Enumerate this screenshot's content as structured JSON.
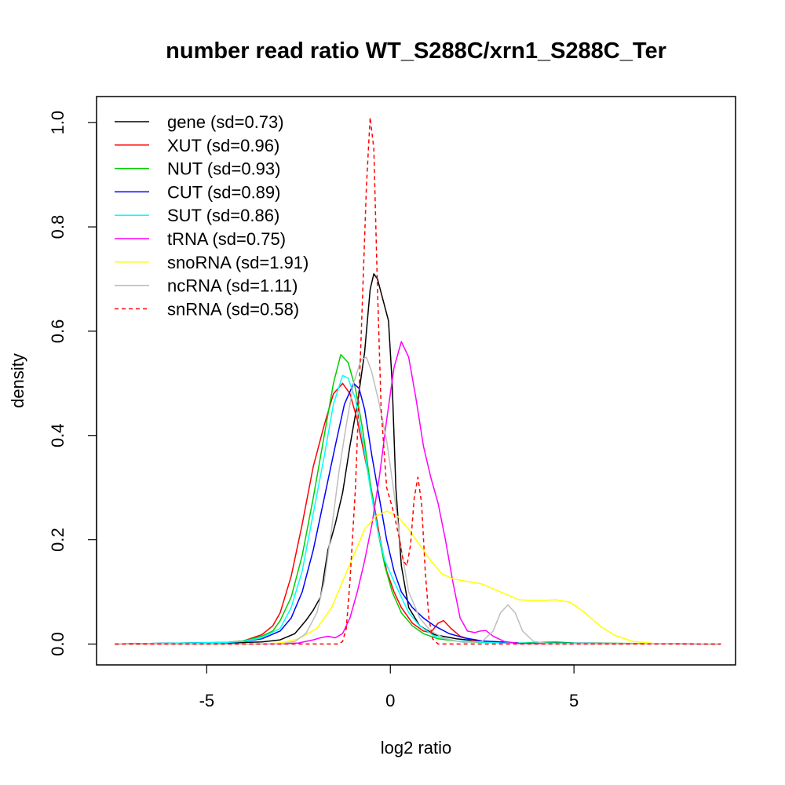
{
  "chart_data": {
    "type": "line",
    "title": "number read ratio WT_S288C/xrn1_S288C_Ter",
    "xlabel": "log2 ratio",
    "ylabel": "density",
    "xlim": [
      -8.0,
      9.4
    ],
    "ylim": [
      -0.04,
      1.05
    ],
    "x_ticks": [
      -5,
      0,
      5
    ],
    "x_tick_labels": [
      "-5",
      "0",
      "5"
    ],
    "y_ticks": [
      0.0,
      0.2,
      0.4,
      0.6,
      0.8,
      1.0
    ],
    "y_tick_labels": [
      "0.0",
      "0.2",
      "0.4",
      "0.6",
      "0.8",
      "1.0"
    ],
    "legend_position": "top-left",
    "grid": false,
    "series": [
      {
        "name": "gene (sd=0.73)",
        "color": "#000000",
        "dash": "solid",
        "points": [
          [
            -7.5,
            0
          ],
          [
            -4.5,
            0.002
          ],
          [
            -3.5,
            0.004
          ],
          [
            -3.0,
            0.008
          ],
          [
            -2.6,
            0.02
          ],
          [
            -2.3,
            0.045
          ],
          [
            -2.1,
            0.065
          ],
          [
            -1.9,
            0.09
          ],
          [
            -1.7,
            0.18
          ],
          [
            -1.5,
            0.23
          ],
          [
            -1.3,
            0.29
          ],
          [
            -1.1,
            0.38
          ],
          [
            -0.9,
            0.46
          ],
          [
            -0.7,
            0.56
          ],
          [
            -0.55,
            0.68
          ],
          [
            -0.45,
            0.71
          ],
          [
            -0.35,
            0.7
          ],
          [
            -0.2,
            0.66
          ],
          [
            -0.05,
            0.62
          ],
          [
            0.05,
            0.5
          ],
          [
            0.15,
            0.3
          ],
          [
            0.3,
            0.15
          ],
          [
            0.5,
            0.07
          ],
          [
            0.8,
            0.035
          ],
          [
            1.2,
            0.018
          ],
          [
            1.8,
            0.01
          ],
          [
            2.5,
            0.005
          ],
          [
            3.5,
            0.002
          ],
          [
            5,
            0.001
          ],
          [
            9,
            0
          ]
        ]
      },
      {
        "name": "XUT (sd=0.96)",
        "color": "#ff0000",
        "dash": "solid",
        "points": [
          [
            -7.5,
            0
          ],
          [
            -4.5,
            0.003
          ],
          [
            -4.0,
            0.006
          ],
          [
            -3.5,
            0.018
          ],
          [
            -3.2,
            0.035
          ],
          [
            -3.0,
            0.06
          ],
          [
            -2.7,
            0.13
          ],
          [
            -2.4,
            0.23
          ],
          [
            -2.1,
            0.34
          ],
          [
            -1.8,
            0.42
          ],
          [
            -1.55,
            0.48
          ],
          [
            -1.3,
            0.5
          ],
          [
            -1.1,
            0.48
          ],
          [
            -0.9,
            0.43
          ],
          [
            -0.7,
            0.36
          ],
          [
            -0.5,
            0.29
          ],
          [
            -0.3,
            0.21
          ],
          [
            -0.1,
            0.14
          ],
          [
            0.1,
            0.1
          ],
          [
            0.3,
            0.07
          ],
          [
            0.6,
            0.04
          ],
          [
            0.9,
            0.025
          ],
          [
            1.1,
            0.022
          ],
          [
            1.3,
            0.04
          ],
          [
            1.45,
            0.045
          ],
          [
            1.65,
            0.03
          ],
          [
            1.9,
            0.015
          ],
          [
            2.3,
            0.006
          ],
          [
            3.5,
            0.002
          ],
          [
            9,
            0
          ]
        ]
      },
      {
        "name": "NUT (sd=0.93)",
        "color": "#00cd00",
        "dash": "solid",
        "points": [
          [
            -7.5,
            0
          ],
          [
            -4.5,
            0.003
          ],
          [
            -4.0,
            0.006
          ],
          [
            -3.5,
            0.015
          ],
          [
            -3.2,
            0.025
          ],
          [
            -3.0,
            0.045
          ],
          [
            -2.7,
            0.09
          ],
          [
            -2.4,
            0.17
          ],
          [
            -2.1,
            0.28
          ],
          [
            -1.8,
            0.4
          ],
          [
            -1.55,
            0.5
          ],
          [
            -1.35,
            0.555
          ],
          [
            -1.15,
            0.54
          ],
          [
            -0.95,
            0.49
          ],
          [
            -0.75,
            0.41
          ],
          [
            -0.55,
            0.31
          ],
          [
            -0.35,
            0.22
          ],
          [
            -0.15,
            0.15
          ],
          [
            0.05,
            0.1
          ],
          [
            0.3,
            0.06
          ],
          [
            0.6,
            0.035
          ],
          [
            0.9,
            0.02
          ],
          [
            1.3,
            0.01
          ],
          [
            2.0,
            0.004
          ],
          [
            3.5,
            0.002
          ],
          [
            4.5,
            0.004
          ],
          [
            5.0,
            0.002
          ],
          [
            9,
            0
          ]
        ]
      },
      {
        "name": "CUT (sd=0.89)",
        "color": "#0000ff",
        "dash": "solid",
        "points": [
          [
            -7.5,
            0
          ],
          [
            -4.5,
            0.003
          ],
          [
            -4.0,
            0.005
          ],
          [
            -3.5,
            0.01
          ],
          [
            -3.0,
            0.025
          ],
          [
            -2.7,
            0.05
          ],
          [
            -2.4,
            0.1
          ],
          [
            -2.1,
            0.18
          ],
          [
            -1.8,
            0.28
          ],
          [
            -1.5,
            0.38
          ],
          [
            -1.25,
            0.46
          ],
          [
            -1.0,
            0.5
          ],
          [
            -0.85,
            0.49
          ],
          [
            -0.7,
            0.45
          ],
          [
            -0.5,
            0.36
          ],
          [
            -0.3,
            0.28
          ],
          [
            -0.1,
            0.2
          ],
          [
            0.1,
            0.14
          ],
          [
            0.3,
            0.1
          ],
          [
            0.6,
            0.07
          ],
          [
            0.9,
            0.05
          ],
          [
            1.2,
            0.035
          ],
          [
            1.6,
            0.02
          ],
          [
            2.0,
            0.012
          ],
          [
            2.5,
            0.006
          ],
          [
            3.5,
            0.002
          ],
          [
            9,
            0
          ]
        ]
      },
      {
        "name": "SUT (sd=0.86)",
        "color": "#00ffff",
        "dash": "solid",
        "points": [
          [
            -7.5,
            0
          ],
          [
            -4.5,
            0.003
          ],
          [
            -4.0,
            0.005
          ],
          [
            -3.5,
            0.012
          ],
          [
            -3.0,
            0.03
          ],
          [
            -2.7,
            0.07
          ],
          [
            -2.4,
            0.14
          ],
          [
            -2.1,
            0.25
          ],
          [
            -1.8,
            0.36
          ],
          [
            -1.55,
            0.46
          ],
          [
            -1.3,
            0.515
          ],
          [
            -1.15,
            0.51
          ],
          [
            -0.95,
            0.47
          ],
          [
            -0.75,
            0.39
          ],
          [
            -0.55,
            0.3
          ],
          [
            -0.35,
            0.22
          ],
          [
            -0.15,
            0.16
          ],
          [
            0.1,
            0.12
          ],
          [
            0.3,
            0.09
          ],
          [
            0.5,
            0.06
          ],
          [
            0.8,
            0.035
          ],
          [
            1.2,
            0.015
          ],
          [
            1.8,
            0.006
          ],
          [
            3.0,
            0.002
          ],
          [
            9,
            0
          ]
        ]
      },
      {
        "name": "tRNA (sd=0.75)",
        "color": "#ff00ff",
        "dash": "solid",
        "points": [
          [
            -7.5,
            0
          ],
          [
            -3.0,
            0
          ],
          [
            -2.5,
            0.002
          ],
          [
            -2.1,
            0.008
          ],
          [
            -1.9,
            0.012
          ],
          [
            -1.7,
            0.015
          ],
          [
            -1.5,
            0.012
          ],
          [
            -1.3,
            0.02
          ],
          [
            -1.1,
            0.05
          ],
          [
            -0.9,
            0.1
          ],
          [
            -0.7,
            0.16
          ],
          [
            -0.5,
            0.23
          ],
          [
            -0.3,
            0.32
          ],
          [
            -0.1,
            0.43
          ],
          [
            0.1,
            0.53
          ],
          [
            0.3,
            0.58
          ],
          [
            0.5,
            0.55
          ],
          [
            0.7,
            0.47
          ],
          [
            0.9,
            0.38
          ],
          [
            1.1,
            0.32
          ],
          [
            1.3,
            0.27
          ],
          [
            1.5,
            0.2
          ],
          [
            1.7,
            0.12
          ],
          [
            1.9,
            0.05
          ],
          [
            2.1,
            0.025
          ],
          [
            2.3,
            0.022
          ],
          [
            2.45,
            0.025
          ],
          [
            2.6,
            0.026
          ],
          [
            2.8,
            0.015
          ],
          [
            3.1,
            0.005
          ],
          [
            3.5,
            0.001
          ],
          [
            9,
            0
          ]
        ]
      },
      {
        "name": "snoRNA (sd=1.91)",
        "color": "#ffff00",
        "dash": "solid",
        "points": [
          [
            -7.5,
            0
          ],
          [
            -3.5,
            0
          ],
          [
            -3.0,
            0.002
          ],
          [
            -2.5,
            0.01
          ],
          [
            -2.0,
            0.03
          ],
          [
            -1.6,
            0.07
          ],
          [
            -1.3,
            0.12
          ],
          [
            -1.0,
            0.17
          ],
          [
            -0.7,
            0.22
          ],
          [
            -0.4,
            0.245
          ],
          [
            -0.1,
            0.255
          ],
          [
            0.2,
            0.245
          ],
          [
            0.5,
            0.22
          ],
          [
            0.8,
            0.19
          ],
          [
            1.1,
            0.16
          ],
          [
            1.4,
            0.135
          ],
          [
            1.7,
            0.125
          ],
          [
            2.1,
            0.12
          ],
          [
            2.5,
            0.115
          ],
          [
            3.0,
            0.1
          ],
          [
            3.5,
            0.085
          ],
          [
            4.0,
            0.083
          ],
          [
            4.5,
            0.085
          ],
          [
            4.9,
            0.08
          ],
          [
            5.3,
            0.06
          ],
          [
            5.7,
            0.035
          ],
          [
            6.1,
            0.017
          ],
          [
            6.6,
            0.005
          ],
          [
            7.2,
            0.001
          ],
          [
            9,
            0
          ]
        ]
      },
      {
        "name": "ncRNA (sd=1.11)",
        "color": "#bebebe",
        "dash": "solid",
        "points": [
          [
            -7.5,
            0
          ],
          [
            -3.0,
            0
          ],
          [
            -2.6,
            0.005
          ],
          [
            -2.3,
            0.02
          ],
          [
            -2.0,
            0.06
          ],
          [
            -1.8,
            0.12
          ],
          [
            -1.6,
            0.22
          ],
          [
            -1.4,
            0.33
          ],
          [
            -1.2,
            0.42
          ],
          [
            -1.0,
            0.5
          ],
          [
            -0.8,
            0.545
          ],
          [
            -0.65,
            0.55
          ],
          [
            -0.5,
            0.52
          ],
          [
            -0.3,
            0.46
          ],
          [
            -0.1,
            0.39
          ],
          [
            0.1,
            0.29
          ],
          [
            0.3,
            0.18
          ],
          [
            0.5,
            0.1
          ],
          [
            0.8,
            0.05
          ],
          [
            1.1,
            0.025
          ],
          [
            1.5,
            0.01
          ],
          [
            2.0,
            0.003
          ],
          [
            2.5,
            0.005
          ],
          [
            2.8,
            0.025
          ],
          [
            3.0,
            0.06
          ],
          [
            3.2,
            0.075
          ],
          [
            3.4,
            0.06
          ],
          [
            3.6,
            0.025
          ],
          [
            3.9,
            0.005
          ],
          [
            4.3,
            0.001
          ],
          [
            9,
            0
          ]
        ]
      },
      {
        "name": "snRNA (sd=0.58)",
        "color": "#ff0000",
        "dash": "dashed",
        "points": [
          [
            -7.5,
            0
          ],
          [
            -1.4,
            0
          ],
          [
            -1.3,
            0.005
          ],
          [
            -1.2,
            0.03
          ],
          [
            -1.1,
            0.12
          ],
          [
            -0.95,
            0.3
          ],
          [
            -0.8,
            0.58
          ],
          [
            -0.65,
            0.88
          ],
          [
            -0.55,
            1.01
          ],
          [
            -0.45,
            0.95
          ],
          [
            -0.35,
            0.68
          ],
          [
            -0.25,
            0.45
          ],
          [
            -0.1,
            0.3
          ],
          [
            0.1,
            0.25
          ],
          [
            0.25,
            0.2
          ],
          [
            0.35,
            0.16
          ],
          [
            0.45,
            0.15
          ],
          [
            0.55,
            0.19
          ],
          [
            0.65,
            0.28
          ],
          [
            0.75,
            0.32
          ],
          [
            0.85,
            0.27
          ],
          [
            0.95,
            0.14
          ],
          [
            1.05,
            0.05
          ],
          [
            1.15,
            0.01
          ],
          [
            1.3,
            0
          ],
          [
            9,
            0
          ]
        ]
      }
    ]
  }
}
